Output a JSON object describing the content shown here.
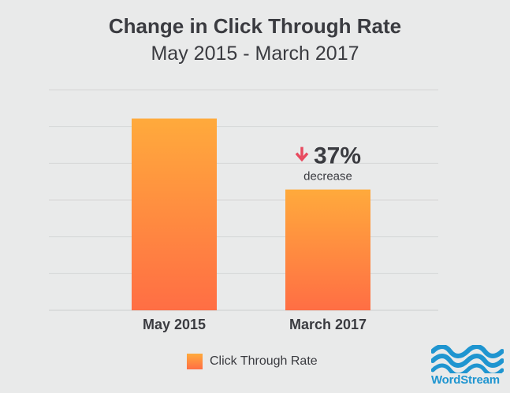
{
  "chart_data": {
    "type": "bar",
    "title": "Change in Click Through Rate",
    "subtitle": "May 2015 - March 2017",
    "categories": [
      "May 2015",
      "March 2017"
    ],
    "series": [
      {
        "name": "Click Through Rate",
        "values": [
          100,
          63
        ]
      }
    ],
    "ylim": [
      0,
      115
    ],
    "grid": true,
    "legend_position": "bottom",
    "annotation": {
      "category": "March 2017",
      "value": "37%",
      "label": "decrease",
      "icon": "arrow-down-icon"
    },
    "colors": {
      "bar_top": "#ffaa3c",
      "bar_bottom": "#ff6e44",
      "arrow": "#e84a5f",
      "text": "#3a3b40",
      "grid": "#d6d7d7"
    }
  },
  "logo": {
    "text": "WordStream",
    "color": "#1f95d0"
  }
}
